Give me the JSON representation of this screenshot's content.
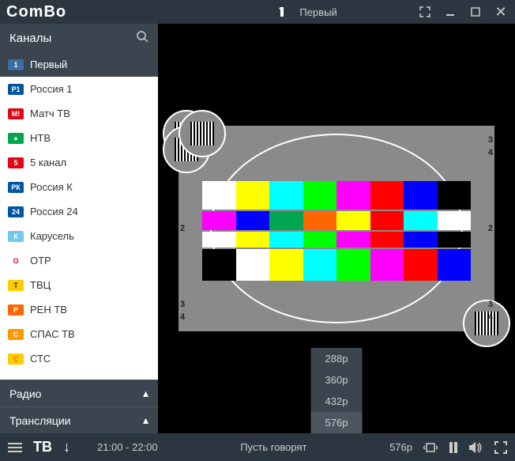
{
  "app": {
    "logo": "ComBo"
  },
  "titlebar": {
    "channel": "Первый"
  },
  "sidebar": {
    "header": "Каналы",
    "channels": [
      {
        "name": "Первый",
        "active": true,
        "logo_bg": "#3a6ea5",
        "logo_fg": "#ffffff",
        "logo_text": "1"
      },
      {
        "name": "Россия 1",
        "logo_bg": "#0055a4",
        "logo_fg": "#ffffff",
        "logo_text": "Р1"
      },
      {
        "name": "Матч ТВ",
        "logo_bg": "#e30613",
        "logo_fg": "#ffffff",
        "logo_text": "М!"
      },
      {
        "name": "НТВ",
        "logo_bg": "#00a651",
        "logo_fg": "#ffffff",
        "logo_text": "●"
      },
      {
        "name": "5 канал",
        "logo_bg": "#e30613",
        "logo_fg": "#ffffff",
        "logo_text": "5"
      },
      {
        "name": "Россия К",
        "logo_bg": "#0055a4",
        "logo_fg": "#ffffff",
        "logo_text": "РК"
      },
      {
        "name": "Россия 24",
        "logo_bg": "#0055a4",
        "logo_fg": "#ffffff",
        "logo_text": "24"
      },
      {
        "name": "Карусель",
        "logo_bg": "#6ec8f0",
        "logo_fg": "#ffffff",
        "logo_text": "К"
      },
      {
        "name": "ОТР",
        "logo_bg": "#ffffff",
        "logo_fg": "#e30613",
        "logo_text": "О"
      },
      {
        "name": "ТВЦ",
        "logo_bg": "#ffcc00",
        "logo_fg": "#333333",
        "logo_text": "Т"
      },
      {
        "name": "РЕН ТВ",
        "logo_bg": "#ff6600",
        "logo_fg": "#ffffff",
        "logo_text": "Р"
      },
      {
        "name": "СПАС ТВ",
        "logo_bg": "#ff9900",
        "logo_fg": "#ffffff",
        "logo_text": "С"
      },
      {
        "name": "СТС",
        "logo_bg": "#ffcc00",
        "logo_fg": "#ff6600",
        "logo_text": "С"
      }
    ],
    "sections": [
      {
        "label": "Радио"
      },
      {
        "label": "Трансляции"
      }
    ]
  },
  "resolutions": {
    "items": [
      "288p",
      "360p",
      "432p",
      "576p"
    ],
    "active": "576p"
  },
  "bottombar": {
    "mode": "ТВ",
    "time": "21:00 - 22:00",
    "program": "Пусть говорят",
    "resolution": "576p"
  },
  "testcard": {
    "main_bars": [
      "#ffffff",
      "#ffff00",
      "#00ffff",
      "#00ff00",
      "#ff00ff",
      "#ff0000",
      "#0000ff",
      "#000000"
    ],
    "bar_row2": [
      "#ff00ff",
      "#0000ff",
      "#00a651",
      "#ff6600",
      "#ffff00",
      "#ff0000",
      "#00ffff",
      "#ffffff"
    ],
    "bar_row3": [
      "#000000",
      "#ffffff",
      "#ffff00",
      "#00ffff",
      "#00ff00",
      "#ff00ff",
      "#ff0000",
      "#0000ff"
    ],
    "bg": "#8a8a8a"
  }
}
